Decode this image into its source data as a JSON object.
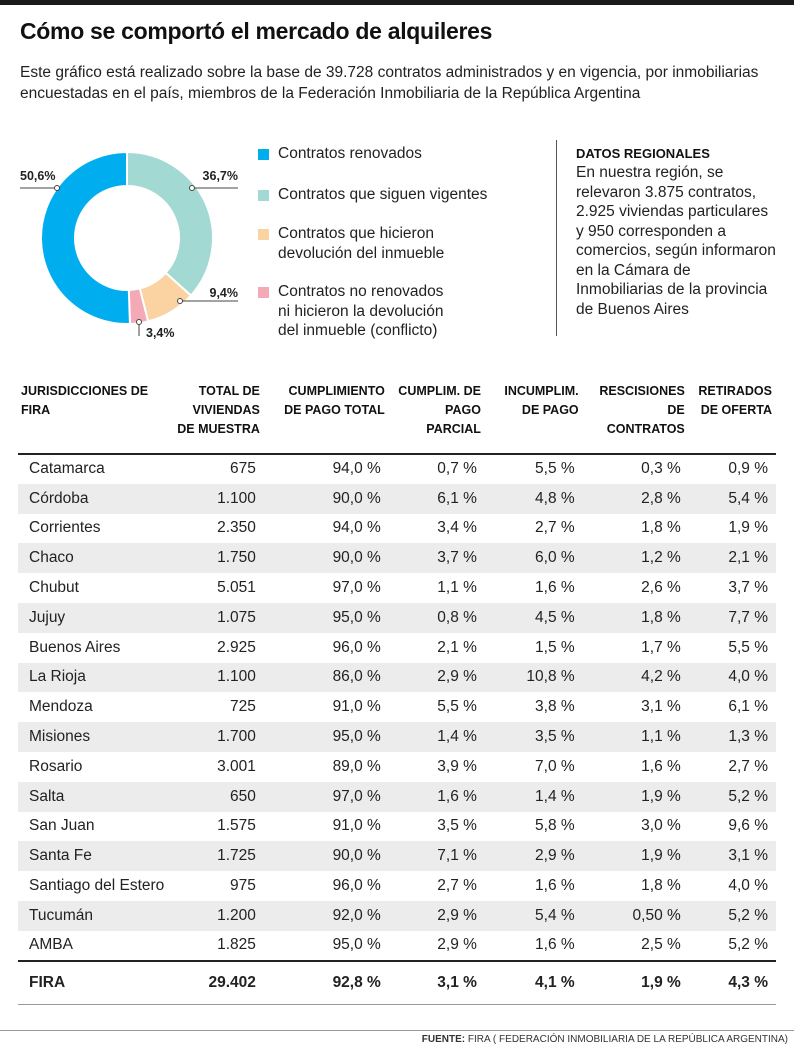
{
  "header": {
    "title": "Cómo se comportó el mercado de alquileres",
    "subtitle": "Este gráfico está realizado sobre la base de 39.728 contratos administrados y en vigencia, por inmobiliarias encuestadas en el país, miembros de la Federación Inmobiliaria de la República Argentina"
  },
  "chart_data": {
    "type": "pie",
    "series": [
      {
        "name": "Contratos renovados",
        "value": 50.6,
        "label": "50,6%",
        "color": "#00adee"
      },
      {
        "name": "Contratos que siguen vigentes",
        "value": 36.7,
        "label": "36,7%",
        "color": "#a3d9d3"
      },
      {
        "name": "Contratos que hicieron devolución del inmueble",
        "value": 9.4,
        "label": "9,4%",
        "color": "#fbd3a3"
      },
      {
        "name": "Contratos no renovados ni hicieron la devolución del inmueble (conflicto)",
        "value": 3.4,
        "label": "3,4%",
        "color": "#f3a9b6"
      }
    ],
    "legend_position": "right"
  },
  "regional": {
    "heading": "DATOS REGIONALES",
    "text": "En nuestra región, se relevaron 3.875 contratos, 2.925 viviendas particulares y 950 corresponden a comercios, según informaron en la Cámara de Inmobiliarias de la provincia de Buenos Aires"
  },
  "table": {
    "headers": [
      "JURISDICCIONES DE FIRA",
      "TOTAL DE VIVIENDAS DE MUESTRA",
      "CUMPLIMIENTO DE PAGO TOTAL",
      "CUMPLIM. DE PAGO PARCIAL",
      "INCUMPLIM. DE PAGO",
      "RESCISIONES DE CONTRATOS",
      "RETIRADOS DE OFERTA"
    ],
    "rows": [
      [
        "Catamarca",
        "675",
        "94,0 %",
        "0,7 %",
        "5,5 %",
        "0,3 %",
        "0,9 %"
      ],
      [
        "Córdoba",
        "1.100",
        "90,0 %",
        "6,1 %",
        "4,8 %",
        "2,8 %",
        "5,4 %"
      ],
      [
        "Corrientes",
        "2.350",
        "94,0 %",
        "3,4 %",
        "2,7 %",
        "1,8 %",
        "1,9 %"
      ],
      [
        "Chaco",
        "1.750",
        "90,0 %",
        "3,7 %",
        "6,0 %",
        "1,2 %",
        "2,1 %"
      ],
      [
        "Chubut",
        "5.051",
        "97,0 %",
        "1,1 %",
        "1,6 %",
        "2,6 %",
        "3,7 %"
      ],
      [
        "Jujuy",
        "1.075",
        "95,0 %",
        "0,8 %",
        "4,5 %",
        "1,8 %",
        "7,7 %"
      ],
      [
        "Buenos Aires",
        "2.925",
        "96,0 %",
        "2,1 %",
        "1,5 %",
        "1,7 %",
        "5,5 %"
      ],
      [
        "La Rioja",
        "1.100",
        "86,0 %",
        "2,9 %",
        "10,8 %",
        "4,2 %",
        "4,0 %"
      ],
      [
        "Mendoza",
        "725",
        "91,0 %",
        "5,5 %",
        "3,8 %",
        "3,1 %",
        "6,1 %"
      ],
      [
        "Misiones",
        "1.700",
        "95,0 %",
        "1,4 %",
        "3,5 %",
        "1,1 %",
        "1,3 %"
      ],
      [
        "Rosario",
        "3.001",
        "89,0 %",
        "3,9 %",
        "7,0 %",
        "1,6 %",
        "2,7 %"
      ],
      [
        "Salta",
        "650",
        "97,0 %",
        "1,6 %",
        "1,4 %",
        "1,9 %",
        "5,2 %"
      ],
      [
        "San Juan",
        "1.575",
        "91,0 %",
        "3,5 %",
        "5,8 %",
        "3,0 %",
        "9,6 %"
      ],
      [
        "Santa Fe",
        "1.725",
        "90,0 %",
        "7,1 %",
        "2,9 %",
        "1,9 %",
        "3,1 %"
      ],
      [
        "Santiago del Estero",
        "975",
        "96,0 %",
        "2,7 %",
        "1,6 %",
        "1,8 %",
        "4,0 %"
      ],
      [
        "Tucumán",
        "1.200",
        "92,0 %",
        "2,9 %",
        "5,4 %",
        "0,50 %",
        "5,2 %"
      ],
      [
        "AMBA",
        "1.825",
        "95,0 %",
        "2,9 %",
        "1,6 %",
        "2,5 %",
        "5,2 %"
      ]
    ],
    "total": [
      "FIRA",
      "29.402",
      "92,8 %",
      "3,1 %",
      "4,1 %",
      "1,9 %",
      "4,3 %"
    ]
  },
  "source": {
    "label": "FUENTE:",
    "text": "FIRA ( FEDERACIÓN INMOBILIARIA DE LA REPÚBLICA ARGENTINA)"
  }
}
